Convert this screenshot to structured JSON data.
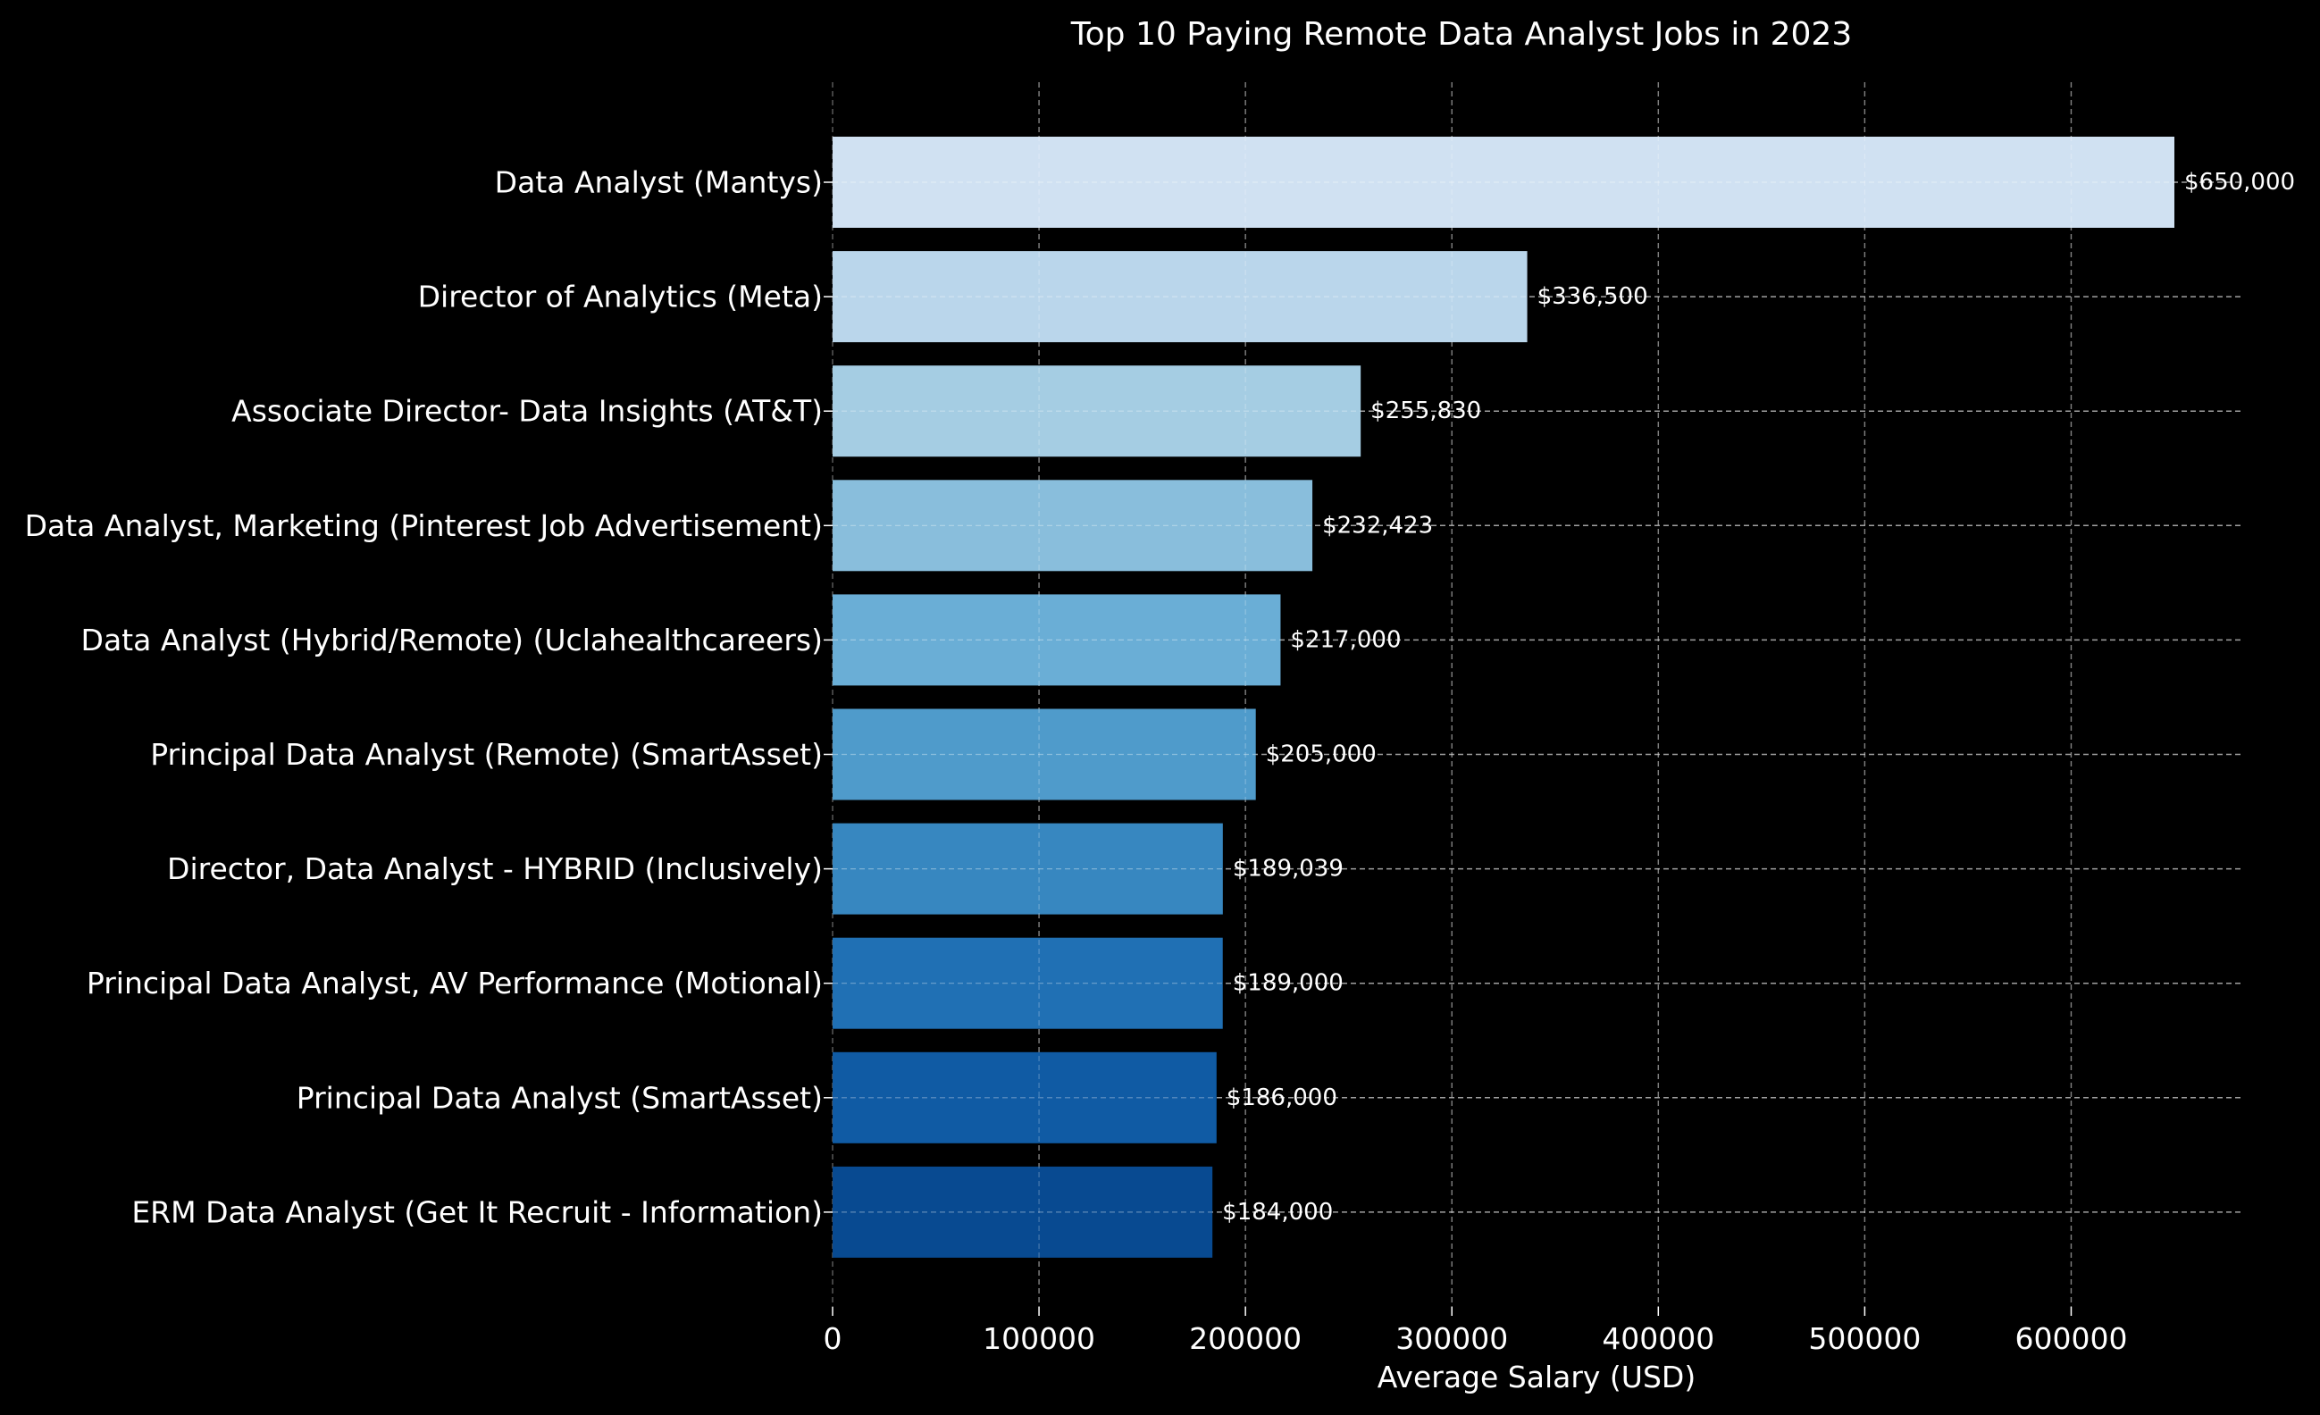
{
  "chart_data": {
    "type": "bar",
    "orientation": "horizontal",
    "title": "Top 10 Paying Remote Data Analyst Jobs in 2023",
    "xlabel": "Average Salary (USD)",
    "ylabel": "",
    "xlim": [
      0,
      680000
    ],
    "xticks": [
      0,
      100000,
      200000,
      300000,
      400000,
      500000,
      600000
    ],
    "xtick_labels": [
      "0",
      "100000",
      "200000",
      "300000",
      "400000",
      "500000",
      "600000"
    ],
    "grid": true,
    "categories": [
      "Data Analyst (Mantys)",
      "Director of Analytics (Meta)",
      "Associate Director- Data Insights (AT&T)",
      "Data Analyst, Marketing (Pinterest Job Advertisement)",
      "Data Analyst (Hybrid/Remote) (Uclahealthcareers)",
      "Principal Data Analyst (Remote) (SmartAsset)",
      "Director, Data Analyst - HYBRID (Inclusively)",
      "Principal Data Analyst, AV Performance (Motional)",
      "Principal Data Analyst (SmartAsset)",
      "ERM Data Analyst (Get It Recruit - Information)"
    ],
    "values": [
      650000,
      336500,
      255830,
      232423,
      217000,
      205000,
      189039,
      189000,
      186000,
      184000
    ],
    "value_labels": [
      "$650,000",
      "$336,500",
      "$255,830",
      "$232,423",
      "$217,000",
      "$205,000",
      "$189,039",
      "$189,000",
      "$186,000",
      "$184,000"
    ],
    "colors": [
      "#d0e1f2",
      "#bad6eb",
      "#a5cde3",
      "#89bedc",
      "#6aaed6",
      "#4f9bcb",
      "#3787c0",
      "#2070b4",
      "#105ba4",
      "#084a91"
    ],
    "background": "#000000",
    "text_color": "#ffffff"
  }
}
